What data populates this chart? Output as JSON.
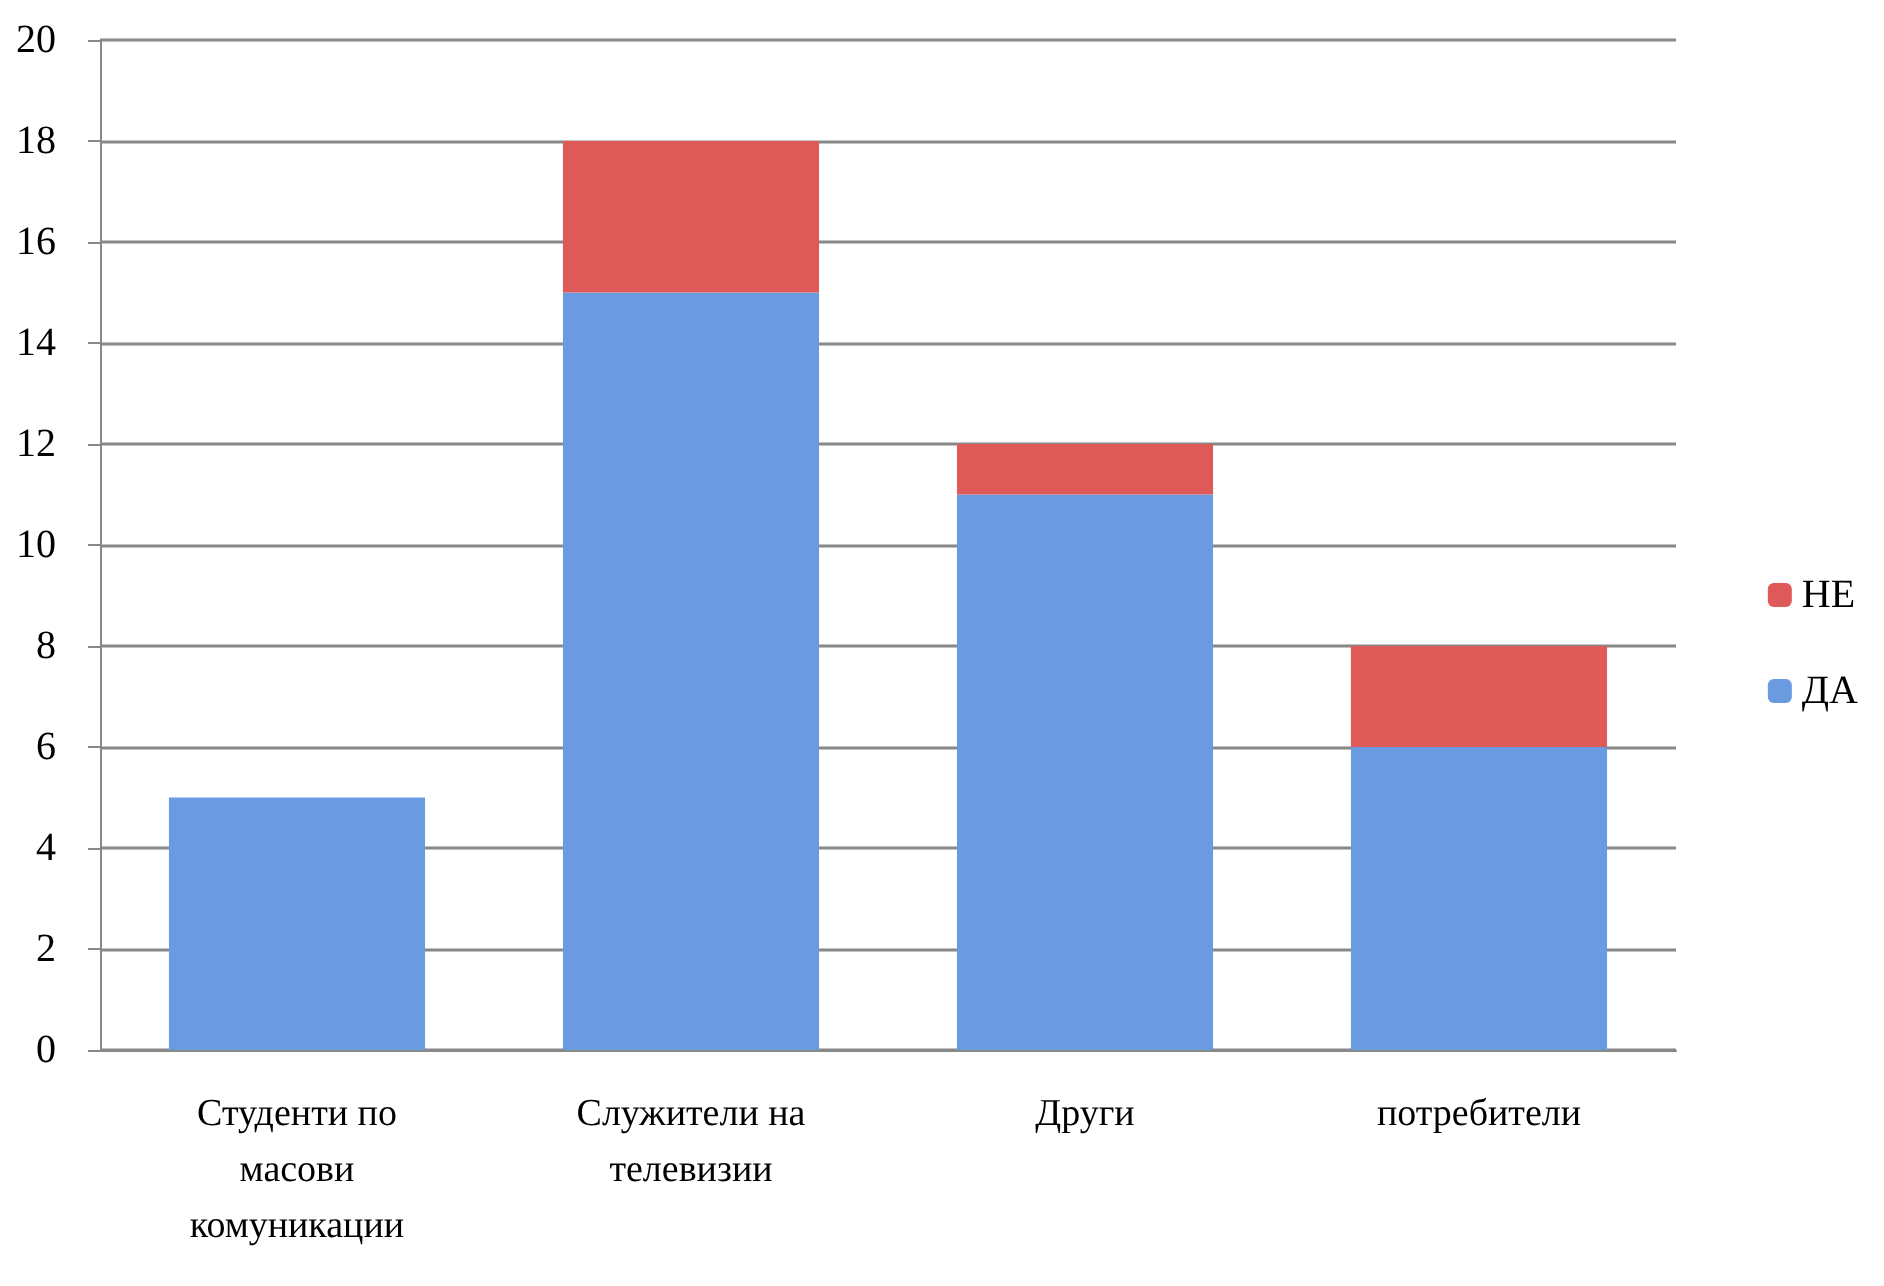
{
  "chart_data": {
    "type": "bar",
    "stacked": true,
    "categories": [
      "Студенти по масови комуникации",
      "Служители на телевизии",
      "Други",
      "потребители"
    ],
    "series": [
      {
        "name": "ДА",
        "color": "#6a9ae0",
        "values": [
          5,
          15,
          11,
          6
        ]
      },
      {
        "name": "НЕ",
        "color": "#de5a58",
        "values": [
          0,
          3,
          1,
          2
        ]
      }
    ],
    "ylim": [
      0,
      20
    ],
    "yticks": [
      0,
      2,
      4,
      6,
      8,
      10,
      12,
      14,
      16,
      18,
      20
    ],
    "grid": "y",
    "legend": "right"
  }
}
